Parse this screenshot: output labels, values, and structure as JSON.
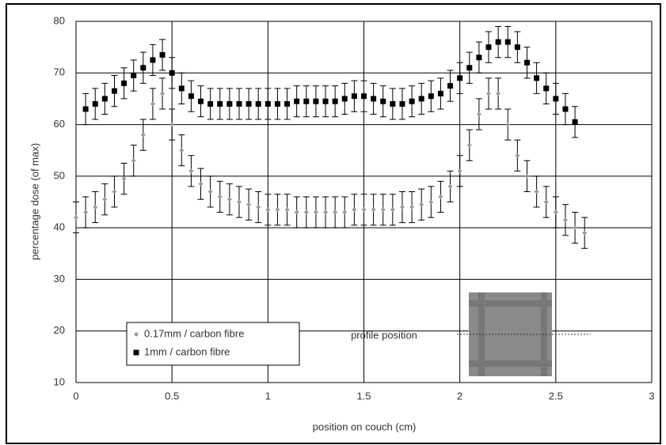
{
  "chart_data": {
    "type": "scatter",
    "x_label": "position on couch (cm)",
    "y_label": "percentage dose (of max)",
    "annotation": "profile position",
    "xlim": [
      0,
      3
    ],
    "xticks": [
      0,
      0.5,
      1,
      1.5,
      2,
      2.5,
      3
    ],
    "ylim": [
      10,
      80
    ],
    "yticks": [
      10,
      20,
      30,
      40,
      50,
      60,
      70,
      80
    ],
    "grid": true,
    "legend": "lower left",
    "x": [
      0,
      0.05,
      0.1,
      0.15,
      0.2,
      0.25,
      0.3,
      0.35,
      0.4,
      0.45,
      0.5,
      0.55,
      0.6,
      0.65,
      0.7,
      0.75,
      0.8,
      0.85,
      0.9,
      0.95,
      1,
      1.05,
      1.1,
      1.15,
      1.2,
      1.25,
      1.3,
      1.35,
      1.4,
      1.45,
      1.5,
      1.55,
      1.6,
      1.65,
      1.7,
      1.75,
      1.8,
      1.85,
      1.9,
      1.95,
      2,
      2.05,
      2.1,
      2.15,
      2.2,
      2.25,
      2.3,
      2.35,
      2.4,
      2.45,
      2.5,
      2.55,
      2.6,
      2.65
    ],
    "series": [
      {
        "name": "0.17mm  / carbon fibre",
        "color": "#999999",
        "marker": "diamond",
        "error": 3,
        "values": [
          42,
          43,
          44,
          45.5,
          47,
          49.5,
          53,
          58,
          64,
          66,
          60,
          55,
          51,
          48.5,
          47,
          46,
          45.5,
          45,
          44.5,
          44,
          43.5,
          43.5,
          43.5,
          43,
          43,
          43,
          43,
          43,
          43,
          43.5,
          43.5,
          43.5,
          43.5,
          43.5,
          44,
          44,
          44.5,
          45,
          46,
          48,
          51,
          56,
          62,
          66,
          66,
          60,
          54,
          50,
          47,
          45,
          43,
          41.5,
          40,
          39
        ]
      },
      {
        "name": "1mm / carbon fibre",
        "color": "#000000",
        "marker": "square",
        "error": 3,
        "values": [
          null,
          63,
          64,
          65,
          66.5,
          68,
          69.5,
          71,
          72.5,
          73.5,
          70,
          67,
          65.5,
          64.5,
          64,
          64,
          64,
          64,
          64,
          64,
          64,
          64,
          64,
          64.5,
          64.5,
          64.5,
          64.5,
          64.5,
          65,
          65.5,
          65.5,
          65,
          64.5,
          64,
          64,
          64.5,
          65,
          65.5,
          66,
          67.5,
          69,
          71,
          73,
          75,
          76,
          76,
          75,
          72,
          69,
          67,
          65,
          63,
          60.5,
          null
        ]
      }
    ]
  }
}
